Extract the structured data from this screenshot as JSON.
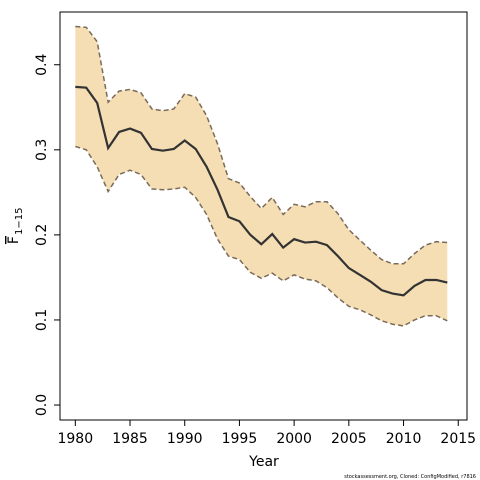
{
  "chart_data": {
    "type": "band_line",
    "x_label": "Year",
    "y_label": {
      "symbol": "F",
      "subscript": "1−15"
    },
    "footer": "stockassessment.org, Cloned: ConfigModified, r7816",
    "x": [
      1980,
      1981,
      1982,
      1983,
      1984,
      1985,
      1986,
      1987,
      1988,
      1989,
      1990,
      1991,
      1992,
      1993,
      1994,
      1995,
      1996,
      1997,
      1998,
      1999,
      2000,
      2001,
      2002,
      2003,
      2004,
      2005,
      2006,
      2007,
      2008,
      2009,
      2010,
      2011,
      2012,
      2013,
      2014
    ],
    "values": [
      0.374,
      0.373,
      0.355,
      0.302,
      0.321,
      0.325,
      0.32,
      0.301,
      0.299,
      0.301,
      0.311,
      0.301,
      0.28,
      0.253,
      0.221,
      0.216,
      0.2,
      0.189,
      0.201,
      0.185,
      0.195,
      0.191,
      0.192,
      0.188,
      0.175,
      0.161,
      0.153,
      0.145,
      0.135,
      0.131,
      0.129,
      0.14,
      0.147,
      0.147,
      0.144
    ],
    "upper": [
      0.445,
      0.444,
      0.427,
      0.356,
      0.369,
      0.371,
      0.367,
      0.348,
      0.346,
      0.348,
      0.366,
      0.362,
      0.34,
      0.307,
      0.266,
      0.261,
      0.245,
      0.231,
      0.244,
      0.224,
      0.236,
      0.233,
      0.239,
      0.239,
      0.225,
      0.206,
      0.194,
      0.182,
      0.171,
      0.166,
      0.166,
      0.178,
      0.188,
      0.192,
      0.191
    ],
    "lower": [
      0.304,
      0.3,
      0.28,
      0.251,
      0.271,
      0.276,
      0.271,
      0.254,
      0.253,
      0.254,
      0.256,
      0.244,
      0.224,
      0.195,
      0.175,
      0.171,
      0.156,
      0.149,
      0.155,
      0.146,
      0.153,
      0.148,
      0.146,
      0.138,
      0.126,
      0.116,
      0.112,
      0.106,
      0.099,
      0.095,
      0.093,
      0.1,
      0.105,
      0.105,
      0.099
    ],
    "line_color": "#333333",
    "band_color": "#f5deb3",
    "band_edge_color": "#7a6a5a",
    "xlim": [
      1978.6,
      2015.8
    ],
    "ylim": [
      -0.0176,
      0.462
    ],
    "xticks": [
      1980,
      1985,
      1990,
      1995,
      2000,
      2005,
      2010,
      2015
    ],
    "yticks": [
      {
        "value": 0,
        "label": "0.0"
      },
      0.1,
      0.2,
      0.3,
      0.4
    ]
  }
}
